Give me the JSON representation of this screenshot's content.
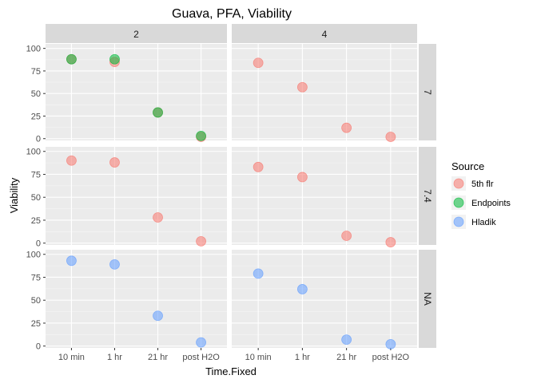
{
  "chart_data": {
    "type": "scatter",
    "title": "Guava, PFA, Viability",
    "xlabel": "Time.Fixed",
    "ylabel": "Viability",
    "categories": [
      "10 min",
      "1 hr",
      "21 hr",
      "post H2O"
    ],
    "ylim": [
      -2,
      105
    ],
    "yticks": [
      0,
      25,
      50,
      75,
      100
    ],
    "facet_cols": [
      "2",
      "4"
    ],
    "facet_rows": [
      "7",
      "7.4",
      "NA"
    ],
    "grid": true,
    "legend": {
      "title": "Source",
      "position": "right",
      "entries": [
        {
          "name": "5th flr",
          "color": "#F8766D"
        },
        {
          "name": "Endpoints",
          "color": "#00BA38"
        },
        {
          "name": "Hladik",
          "color": "#619CFF"
        }
      ]
    },
    "panels": [
      {
        "col": "2",
        "row": "7",
        "series": [
          {
            "source": "5th flr",
            "values": [
              88,
              85,
              29,
              2
            ]
          },
          {
            "source": "Endpoints",
            "values": [
              88,
              88,
              29,
              3
            ]
          }
        ]
      },
      {
        "col": "4",
        "row": "7",
        "series": [
          {
            "source": "5th flr",
            "values": [
              84,
              57,
              12,
              2
            ]
          }
        ]
      },
      {
        "col": "2",
        "row": "7.4",
        "series": [
          {
            "source": "5th flr",
            "values": [
              90,
              88,
              28,
              2
            ]
          }
        ]
      },
      {
        "col": "4",
        "row": "7.4",
        "series": [
          {
            "source": "5th flr",
            "values": [
              83,
              72,
              8,
              1
            ]
          }
        ]
      },
      {
        "col": "2",
        "row": "NA",
        "series": [
          {
            "source": "Hladik",
            "values": [
              93,
              89,
              33,
              4
            ]
          }
        ]
      },
      {
        "col": "4",
        "row": "NA",
        "series": [
          {
            "source": "Hladik",
            "values": [
              79,
              62,
              7,
              2
            ]
          }
        ]
      }
    ]
  }
}
